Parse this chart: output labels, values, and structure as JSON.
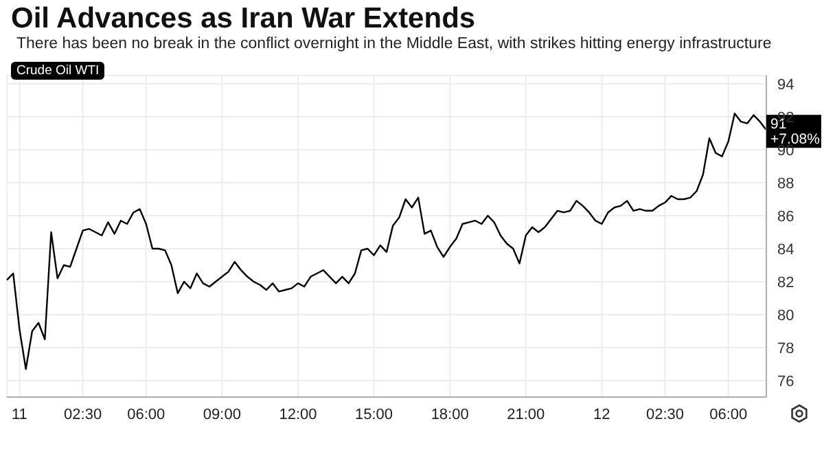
{
  "chart_data": {
    "type": "line",
    "title": "Oil Advances as Iran War Extends",
    "subtitle": "There has been no break in the conflict overnight in the Middle East, with strikes hitting energy infrastructure",
    "categories": [
      null,
      null,
      "11",
      null,
      null,
      null,
      null,
      null,
      null,
      null,
      null,
      null,
      "02:30",
      null,
      null,
      null,
      null,
      null,
      null,
      null,
      null,
      null,
      "06:00",
      null,
      null,
      null,
      null,
      null,
      null,
      null,
      null,
      null,
      null,
      null,
      "09:00",
      null,
      null,
      null,
      null,
      null,
      null,
      null,
      null,
      null,
      null,
      null,
      "12:00",
      null,
      null,
      null,
      null,
      null,
      null,
      null,
      null,
      null,
      null,
      null,
      "15:00",
      null,
      null,
      null,
      null,
      null,
      null,
      null,
      null,
      null,
      null,
      null,
      "18:00",
      null,
      null,
      null,
      null,
      null,
      null,
      null,
      null,
      null,
      null,
      null,
      "21:00",
      null,
      null,
      null,
      null,
      null,
      null,
      null,
      null,
      null,
      null,
      null,
      "12",
      null,
      null,
      null,
      null,
      null,
      null,
      null,
      null,
      null,
      "02:30",
      null,
      null,
      null,
      null,
      null,
      null,
      null,
      null,
      null,
      "06:00",
      null,
      null,
      null,
      null,
      null,
      null
    ],
    "series": [
      {
        "name": "Crude Oil WTI",
        "color": "#000000",
        "values": [
          82.1,
          82.5,
          79.1,
          76.7,
          79.0,
          79.5,
          78.5,
          85.0,
          82.2,
          83.0,
          82.9,
          84.0,
          85.1,
          85.2,
          85.0,
          84.8,
          85.6,
          84.9,
          85.7,
          85.5,
          86.2,
          86.4,
          85.5,
          84.0,
          84.0,
          83.9,
          83.0,
          81.3,
          82.0,
          81.6,
          82.5,
          81.9,
          81.7,
          82.0,
          82.3,
          82.6,
          83.2,
          82.7,
          82.3,
          82.0,
          81.8,
          81.5,
          81.9,
          81.4,
          81.5,
          81.6,
          81.9,
          81.7,
          82.3,
          82.5,
          82.7,
          82.3,
          81.9,
          82.3,
          81.9,
          82.5,
          83.9,
          84.0,
          83.6,
          84.2,
          83.8,
          85.4,
          85.9,
          87.0,
          86.5,
          87.1,
          84.9,
          85.1,
          84.1,
          83.5,
          84.1,
          84.6,
          85.5,
          85.6,
          85.7,
          85.5,
          86.0,
          85.6,
          84.8,
          84.3,
          84.0,
          83.1,
          84.8,
          85.3,
          85.0,
          85.3,
          85.8,
          86.3,
          86.2,
          86.3,
          86.9,
          86.6,
          86.2,
          85.7,
          85.5,
          86.2,
          86.5,
          86.6,
          86.9,
          86.3,
          86.4,
          86.3,
          86.3,
          86.6,
          86.8,
          87.2,
          87.0,
          87.0,
          87.1,
          87.5,
          88.5,
          90.7,
          89.8,
          89.6,
          90.5,
          92.2,
          91.7,
          91.6,
          92.1,
          91.7,
          91.2
        ]
      }
    ],
    "ylim": [
      75,
      94.5
    ],
    "yticks": [
      76,
      78,
      80,
      82,
      84,
      86,
      88,
      90,
      92,
      94
    ],
    "grid": true,
    "legend": "top left",
    "marker": "none",
    "line_style": "solid",
    "annotations": [
      "91",
      "+7.08%"
    ]
  }
}
